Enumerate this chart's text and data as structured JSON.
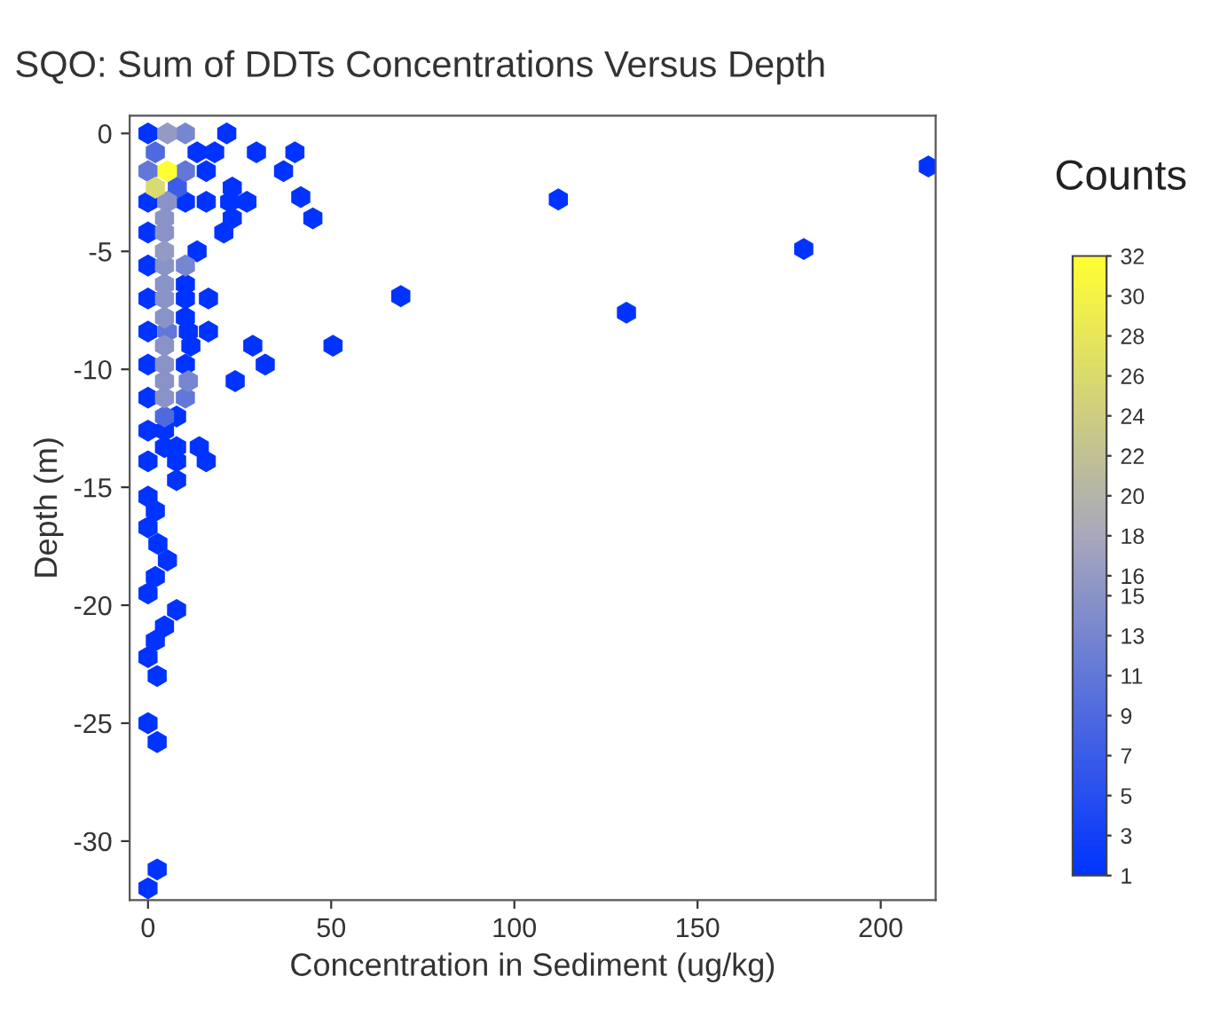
{
  "chart_data": {
    "type": "scatter",
    "title": "SQO: Sum of DDTs Concentrations Versus Depth",
    "xlabel": "Concentration in Sediment (ug/kg)",
    "ylabel": "Depth (m)",
    "clabel": "Counts",
    "grid": false,
    "xlim": [
      -5,
      215
    ],
    "xticks": [
      0,
      50,
      100,
      150,
      200
    ],
    "ylim": [
      -32.5,
      0.75
    ],
    "yticks": [
      0,
      -5,
      -10,
      -15,
      -20,
      -25,
      -30
    ],
    "clim": [
      1,
      32
    ],
    "cticks": [
      1,
      3,
      5,
      7,
      9,
      11,
      13,
      15,
      16,
      18,
      20,
      22,
      24,
      26,
      28,
      30,
      32
    ],
    "x": [
      0,
      5.3,
      10.2,
      21.5,
      2,
      13.4,
      18.2,
      29.6,
      40.1,
      0,
      5.3,
      10.2,
      15.9,
      37,
      213,
      2,
      8,
      23,
      112,
      0,
      5.3,
      10.2,
      15.9,
      22.3,
      27,
      41.7,
      4.5,
      23,
      45,
      0,
      4.5,
      20.7,
      4.5,
      13.4,
      179,
      0,
      4.5,
      10.2,
      4.5,
      10.2,
      0,
      4.5,
      10.2,
      16.5,
      69,
      4.5,
      10.2,
      130.6,
      0,
      5.3,
      11,
      16.5,
      4.5,
      11.7,
      28.6,
      50.5,
      0,
      4.5,
      10.2,
      32,
      4.5,
      11,
      23.8,
      0,
      4.5,
      10.2,
      4.5,
      7.8,
      0,
      4.5,
      4.5,
      7.8,
      14,
      0,
      7.8,
      15.9,
      7.8,
      0,
      2,
      0,
      2.7,
      5.3,
      2,
      0,
      7.8,
      4.5,
      2,
      0,
      2.5,
      0,
      2.5,
      2.5,
      0
    ],
    "values": [
      0,
      0,
      0,
      0,
      -0.8,
      -0.8,
      -0.8,
      -0.8,
      -0.8,
      -1.6,
      -1.6,
      -1.6,
      -1.6,
      -1.6,
      -1.4,
      -2.3,
      -2.3,
      -2.3,
      -2.8,
      -2.9,
      -2.9,
      -2.9,
      -2.9,
      -2.9,
      -2.9,
      -2.7,
      -3.6,
      -3.6,
      -3.6,
      -4.2,
      -4.2,
      -4.2,
      -5,
      -5,
      -4.9,
      -5.6,
      -5.6,
      -5.6,
      -6.4,
      -6.4,
      -7,
      -7,
      -7,
      -7,
      -6.9,
      -7.8,
      -7.8,
      -7.6,
      -8.4,
      -8.4,
      -8.4,
      -8.4,
      -9,
      -9,
      -9,
      -9,
      -9.8,
      -9.8,
      -9.8,
      -9.8,
      -10.5,
      -10.5,
      -10.5,
      -11.2,
      -11.2,
      -11.2,
      -12,
      -12,
      -12.6,
      -12.6,
      -13.3,
      -13.3,
      -13.3,
      -13.9,
      -13.9,
      -13.9,
      -14.7,
      -15.4,
      -16,
      -16.7,
      -17.4,
      -18.1,
      -18.8,
      -19.5,
      -20.2,
      -20.9,
      -21.5,
      -22.2,
      -23,
      -25,
      -25.8,
      -31.2,
      -32
    ],
    "cvalues": [
      1,
      16,
      13,
      1,
      9,
      1,
      1,
      1,
      1,
      11,
      32,
      11,
      1,
      1,
      1,
      26,
      7,
      1,
      1,
      1,
      15,
      1,
      1,
      1,
      1,
      1,
      15,
      1,
      1,
      1,
      15,
      1,
      16,
      1,
      1,
      1,
      15,
      13,
      15,
      1,
      1,
      15,
      1,
      1,
      1,
      15,
      1,
      1,
      1,
      11,
      1,
      1,
      15,
      1,
      1,
      1,
      1,
      15,
      1,
      1,
      15,
      13,
      1,
      1,
      15,
      11,
      9,
      1,
      1,
      1,
      1,
      1,
      1,
      1,
      1,
      1,
      1,
      1,
      1,
      1,
      1,
      1,
      1,
      1,
      1,
      1,
      1,
      1,
      1,
      1,
      1,
      1,
      1
    ]
  }
}
